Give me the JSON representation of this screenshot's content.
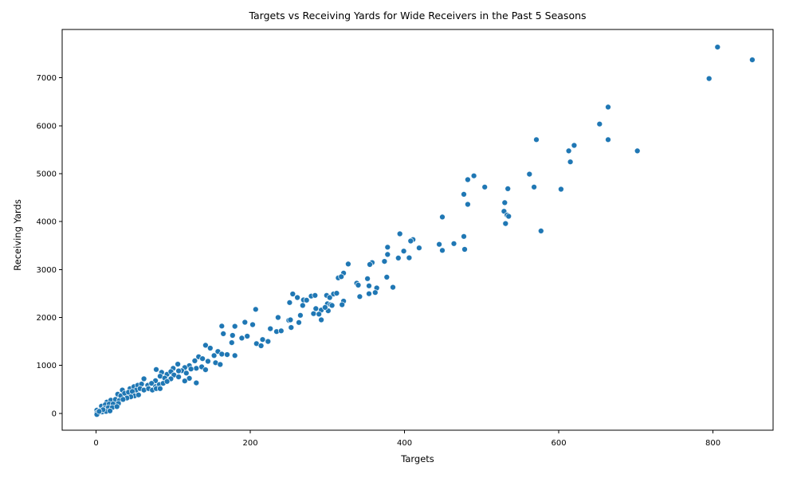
{
  "chart_data": {
    "type": "scatter",
    "title": "Targets vs Receiving Yards for Wide Receivers in the Past 5 Seasons",
    "xlabel": "Targets",
    "ylabel": "Receiving Yards",
    "xlim": [
      -44,
      878
    ],
    "ylim": [
      -352,
      8008
    ],
    "xticks": [
      0,
      200,
      400,
      600,
      800
    ],
    "yticks": [
      0,
      1000,
      2000,
      3000,
      4000,
      5000,
      6000,
      7000
    ],
    "grid": false,
    "legend": null,
    "marker": {
      "color": "#1f77b4",
      "edge_color": "rgba(255,255,255,0.85)",
      "radius_px": 3.5
    },
    "points": [
      [
        806,
        7640
      ],
      [
        851,
        7375
      ],
      [
        795,
        6985
      ],
      [
        664,
        6390
      ],
      [
        653,
        6035
      ],
      [
        664,
        5710
      ],
      [
        702,
        5475
      ],
      [
        620,
        5590
      ],
      [
        613,
        5475
      ],
      [
        615,
        5245
      ],
      [
        603,
        4675
      ],
      [
        571,
        5710
      ],
      [
        562,
        4990
      ],
      [
        490,
        4955
      ],
      [
        482,
        4875
      ],
      [
        504,
        4720
      ],
      [
        534,
        4685
      ],
      [
        568,
        4720
      ],
      [
        477,
        4570
      ],
      [
        482,
        4360
      ],
      [
        530,
        4395
      ],
      [
        529,
        4215
      ],
      [
        533,
        4135
      ],
      [
        535,
        4110
      ],
      [
        531,
        3960
      ],
      [
        449,
        4095
      ],
      [
        577,
        3805
      ],
      [
        394,
        3745
      ],
      [
        411,
        3625
      ],
      [
        408,
        3595
      ],
      [
        419,
        3450
      ],
      [
        399,
        3385
      ],
      [
        406,
        3245
      ],
      [
        445,
        3525
      ],
      [
        449,
        3400
      ],
      [
        464,
        3540
      ],
      [
        477,
        3690
      ],
      [
        478,
        3420
      ],
      [
        378,
        3465
      ],
      [
        378,
        3315
      ],
      [
        392,
        3240
      ],
      [
        374,
        3170
      ],
      [
        358,
        3145
      ],
      [
        355,
        3105
      ],
      [
        327,
        3115
      ],
      [
        377,
        2840
      ],
      [
        352,
        2810
      ],
      [
        321,
        2925
      ],
      [
        314,
        2825
      ],
      [
        318,
        2850
      ],
      [
        338,
        2715
      ],
      [
        340,
        2675
      ],
      [
        354,
        2660
      ],
      [
        364,
        2615
      ],
      [
        385,
        2630
      ],
      [
        354,
        2495
      ],
      [
        342,
        2435
      ],
      [
        362,
        2520
      ],
      [
        299,
        2460
      ],
      [
        303,
        2415
      ],
      [
        308,
        2490
      ],
      [
        312,
        2505
      ],
      [
        279,
        2445
      ],
      [
        284,
        2460
      ],
      [
        255,
        2490
      ],
      [
        261,
        2415
      ],
      [
        269,
        2365
      ],
      [
        273,
        2360
      ],
      [
        300,
        2285
      ],
      [
        304,
        2265
      ],
      [
        321,
        2340
      ],
      [
        285,
        2185
      ],
      [
        301,
        2140
      ],
      [
        251,
        2310
      ],
      [
        207,
        2170
      ],
      [
        236,
        2000
      ],
      [
        268,
        2250
      ],
      [
        292,
        2155
      ],
      [
        297,
        2210
      ],
      [
        306,
        2250
      ],
      [
        319,
        2265
      ],
      [
        265,
        2045
      ],
      [
        282,
        2080
      ],
      [
        289,
        2070
      ],
      [
        250,
        1940
      ],
      [
        252,
        1950
      ],
      [
        292,
        1950
      ],
      [
        263,
        1895
      ],
      [
        226,
        1765
      ],
      [
        234,
        1705
      ],
      [
        203,
        1850
      ],
      [
        193,
        1900
      ],
      [
        180,
        1815
      ],
      [
        163,
        1820
      ],
      [
        165,
        1660
      ],
      [
        177,
        1625
      ],
      [
        253,
        1790
      ],
      [
        240,
        1720
      ],
      [
        196,
        1610
      ],
      [
        189,
        1570
      ],
      [
        176,
        1475
      ],
      [
        142,
        1420
      ],
      [
        148,
        1360
      ],
      [
        208,
        1455
      ],
      [
        216,
        1540
      ],
      [
        214,
        1410
      ],
      [
        223,
        1500
      ],
      [
        158,
        1290
      ],
      [
        163,
        1235
      ],
      [
        153,
        1205
      ],
      [
        133,
        1180
      ],
      [
        138,
        1140
      ],
      [
        128,
        1095
      ],
      [
        145,
        1085
      ],
      [
        155,
        1055
      ],
      [
        106,
        1025
      ],
      [
        121,
        995
      ],
      [
        170,
        1225
      ],
      [
        180,
        1205
      ],
      [
        161,
        1020
      ],
      [
        115,
        955
      ],
      [
        100,
        940
      ],
      [
        130,
        940
      ],
      [
        137,
        970
      ],
      [
        78,
        915
      ],
      [
        85,
        855
      ],
      [
        92,
        815
      ],
      [
        111,
        890
      ],
      [
        123,
        925
      ],
      [
        117,
        840
      ],
      [
        142,
        910
      ],
      [
        97,
        870
      ],
      [
        101,
        800
      ],
      [
        107,
        760
      ],
      [
        121,
        730
      ],
      [
        115,
        675
      ],
      [
        97,
        720
      ],
      [
        62,
        720
      ],
      [
        83,
        775
      ],
      [
        89,
        735
      ],
      [
        77,
        680
      ],
      [
        107,
        885
      ],
      [
        130,
        635
      ],
      [
        34,
        485
      ],
      [
        44,
        515
      ],
      [
        49,
        555
      ],
      [
        54,
        585
      ],
      [
        59,
        610
      ],
      [
        67,
        585
      ],
      [
        72,
        625
      ],
      [
        77,
        555
      ],
      [
        82,
        600
      ],
      [
        87,
        625
      ],
      [
        92,
        665
      ],
      [
        52,
        485
      ],
      [
        57,
        515
      ],
      [
        62,
        485
      ],
      [
        68,
        515
      ],
      [
        73,
        485
      ],
      [
        78,
        515
      ],
      [
        83,
        515
      ],
      [
        28,
        400
      ],
      [
        32,
        365
      ],
      [
        37,
        420
      ],
      [
        42,
        440
      ],
      [
        47,
        455
      ],
      [
        50,
        365
      ],
      [
        45,
        345
      ],
      [
        55,
        385
      ],
      [
        40,
        320
      ],
      [
        14,
        235
      ],
      [
        19,
        275
      ],
      [
        25,
        290
      ],
      [
        30,
        265
      ],
      [
        35,
        290
      ],
      [
        7,
        150
      ],
      [
        12,
        180
      ],
      [
        17,
        195
      ],
      [
        22,
        195
      ],
      [
        29,
        205
      ],
      [
        11,
        105
      ],
      [
        16,
        120
      ],
      [
        21,
        120
      ],
      [
        27,
        140
      ],
      [
        1,
        65
      ],
      [
        2,
        10
      ],
      [
        3,
        30
      ],
      [
        8,
        30
      ],
      [
        13,
        40
      ],
      [
        18,
        50
      ],
      [
        1,
        5
      ],
      [
        5,
        55
      ],
      [
        2,
        -15
      ],
      [
        1,
        -25
      ],
      [
        9,
        75
      ],
      [
        4,
        40
      ]
    ]
  }
}
